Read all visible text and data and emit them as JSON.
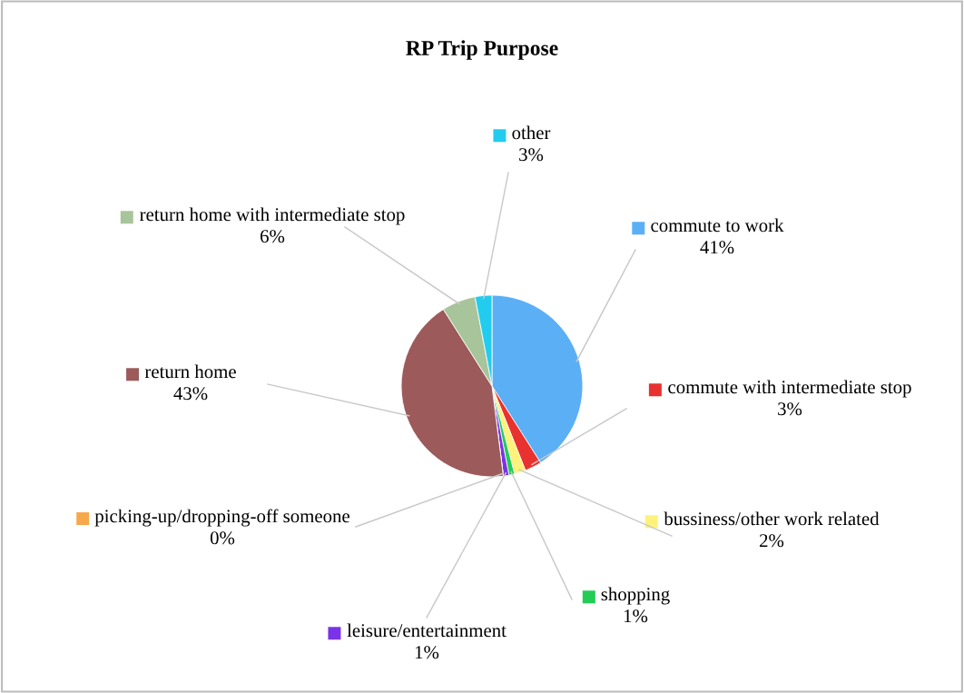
{
  "chart_data": {
    "type": "pie",
    "title": "RP Trip Purpose",
    "categories": [
      "commute to work",
      "commute with intermediate stop",
      "bussiness/other work related",
      "shopping",
      "leisure/entertainment",
      "picking-up/dropping-off someone",
      "return home",
      "return home with intermediate stop",
      "other"
    ],
    "values": [
      41,
      3,
      2,
      1,
      1,
      0,
      43,
      6,
      3
    ],
    "value_labels": [
      "41%",
      "3%",
      "2%",
      "1%",
      "1%",
      "0%",
      "43%",
      "6%",
      "3%"
    ],
    "colors": [
      "#5aaff5",
      "#e8322f",
      "#fff27a",
      "#22cc55",
      "#7a33e8",
      "#f5a94a",
      "#9c5a5a",
      "#a8c49a",
      "#22ccee"
    ],
    "legend": "top right"
  }
}
